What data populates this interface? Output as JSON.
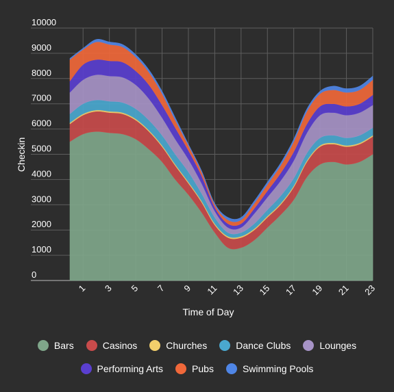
{
  "chart_data": {
    "type": "area",
    "stacked": true,
    "xlabel": "Time of Day",
    "ylabel": "Checkin",
    "ylim": [
      0,
      10000
    ],
    "y_ticks": [
      0,
      1000,
      2000,
      3000,
      4000,
      5000,
      6000,
      7000,
      8000,
      9000,
      10000
    ],
    "x_ticks": [
      1,
      3,
      5,
      7,
      9,
      11,
      13,
      15,
      17,
      19,
      21,
      23
    ],
    "x": [
      0,
      1,
      2,
      3,
      4,
      5,
      6,
      7,
      8,
      9,
      10,
      11,
      12,
      13,
      14,
      15,
      16,
      17,
      18,
      19,
      20,
      21,
      22,
      23
    ],
    "grid": true,
    "legend_position": "bottom",
    "series": [
      {
        "name": "Bars",
        "color": "#7fa68a",
        "values": [
          5500,
          5800,
          5900,
          5850,
          5800,
          5600,
          5200,
          4700,
          4000,
          3400,
          2700,
          1900,
          1300,
          1300,
          1600,
          2100,
          2600,
          3200,
          4100,
          4600,
          4700,
          4600,
          4700,
          5000
        ]
      },
      {
        "name": "Casinos",
        "color": "#c84b4b",
        "values": [
          700,
          750,
          800,
          800,
          800,
          750,
          700,
          600,
          550,
          450,
          400,
          300,
          400,
          400,
          400,
          400,
          400,
          500,
          600,
          700,
          700,
          700,
          700,
          700
        ]
      },
      {
        "name": "Churches",
        "color": "#f2cf6b",
        "values": [
          50,
          50,
          50,
          50,
          50,
          50,
          50,
          50,
          50,
          50,
          50,
          50,
          50,
          50,
          50,
          50,
          50,
          50,
          50,
          50,
          50,
          50,
          50,
          50
        ]
      },
      {
        "name": "Dance Clubs",
        "color": "#4aa8cf",
        "values": [
          350,
          400,
          400,
          400,
          400,
          400,
          400,
          400,
          400,
          400,
          300,
          250,
          150,
          150,
          200,
          250,
          300,
          300,
          300,
          300,
          300,
          300,
          300,
          300
        ]
      },
      {
        "name": "Lounges",
        "color": "#a693c6",
        "values": [
          850,
          950,
          1000,
          1000,
          1000,
          950,
          850,
          700,
          600,
          500,
          400,
          250,
          200,
          200,
          400,
          500,
          600,
          700,
          800,
          900,
          900,
          900,
          900,
          900
        ]
      },
      {
        "name": "Performing Arts",
        "color": "#5a3fcf",
        "values": [
          450,
          600,
          600,
          600,
          600,
          550,
          550,
          500,
          450,
          350,
          300,
          150,
          150,
          150,
          200,
          250,
          300,
          350,
          350,
          350,
          350,
          350,
          350,
          400
        ]
      },
      {
        "name": "Pubs",
        "color": "#f0683a",
        "values": [
          850,
          600,
          700,
          650,
          600,
          550,
          500,
          450,
          300,
          200,
          150,
          100,
          150,
          150,
          200,
          250,
          300,
          400,
          500,
          500,
          550,
          550,
          550,
          600
        ]
      },
      {
        "name": "Swimming Pools",
        "color": "#4f86e6",
        "values": [
          50,
          50,
          100,
          100,
          100,
          100,
          100,
          100,
          100,
          50,
          50,
          50,
          100,
          100,
          100,
          100,
          100,
          100,
          100,
          100,
          150,
          150,
          150,
          150
        ]
      }
    ]
  }
}
